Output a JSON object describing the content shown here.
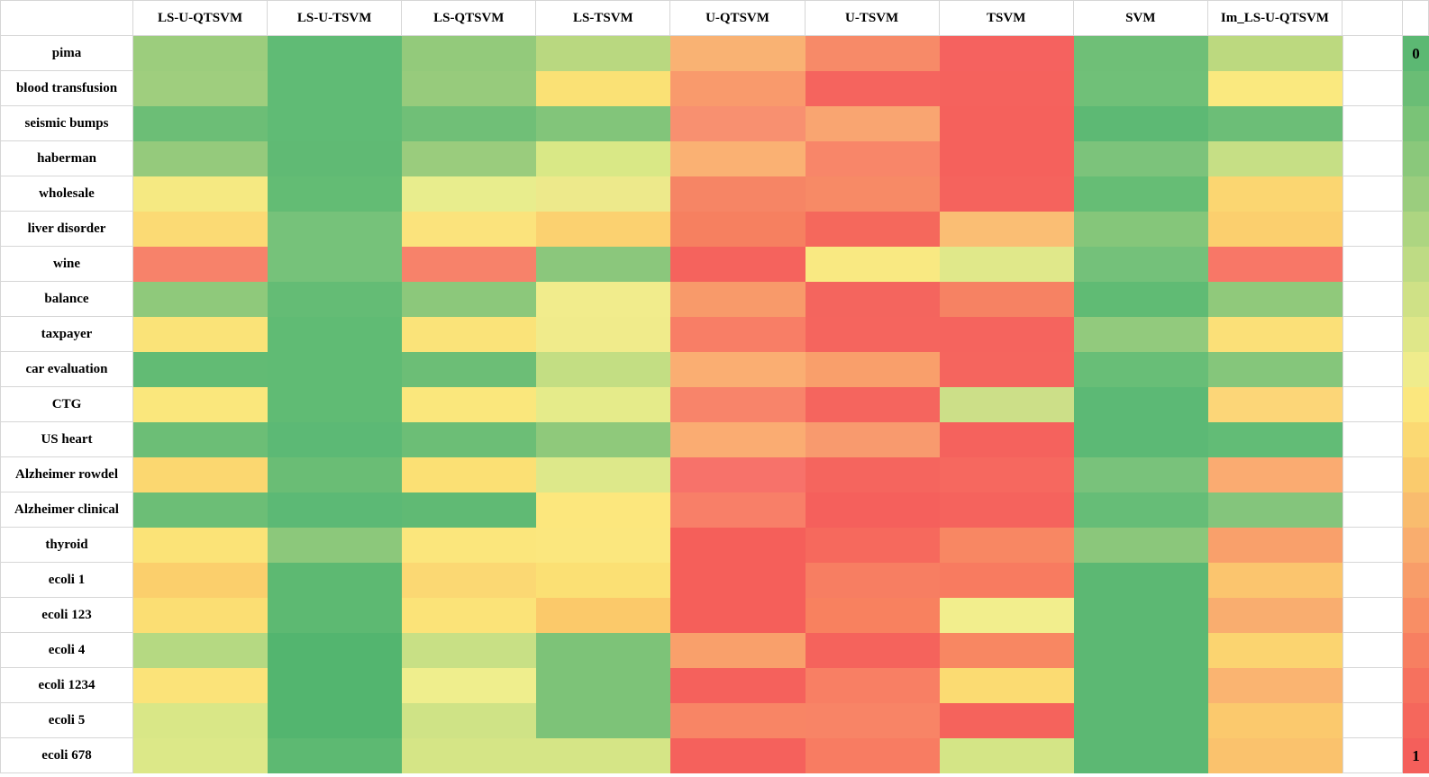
{
  "chart_data": {
    "type": "heatmap",
    "title": "",
    "columns": [
      "LS-U-QTSVM",
      "LS-U-TSVM",
      "LS-QTSVM",
      "LS-TSVM",
      "U-QTSVM",
      "U-TSVM",
      "TSVM",
      "SVM",
      "Im_LS-U-QTSVM"
    ],
    "rows": [
      "pima",
      "blood transfusion",
      "seismic bumps",
      "haberman",
      "wholesale",
      "liver disorder",
      "wine",
      "balance",
      "taxpayer",
      "car evaluation",
      "CTG",
      "US heart",
      "Alzheimer rowdel",
      "Alzheimer clinical",
      "thyroid",
      "ecoli 1",
      "ecoli 123",
      "ecoli 4",
      "ecoli 1234",
      "ecoli 5",
      "ecoli 678"
    ],
    "cell_colors": [
      [
        "#9ccd7d",
        "#60bb75",
        "#93ca7b",
        "#b9d880",
        "#f9b273",
        "#f78a68",
        "#f5625f",
        "#6fbf77",
        "#bcd97f"
      ],
      [
        "#9fce7e",
        "#60bb75",
        "#97cb7c",
        "#fae175",
        "#f99a6c",
        "#f5645e",
        "#f5625d",
        "#70c078",
        "#fae97f"
      ],
      [
        "#6cbe76",
        "#60bb75",
        "#70bf77",
        "#82c57a",
        "#f89070",
        "#f9a571",
        "#f5615c",
        "#5db974",
        "#6cbe77"
      ],
      [
        "#95ca7c",
        "#60ba74",
        "#9acc7d",
        "#d9e886",
        "#fab173",
        "#f88669",
        "#f5615c",
        "#7cc37b",
        "#c6df85"
      ],
      [
        "#f5e982",
        "#63bc74",
        "#e8ed8d",
        "#ede98b",
        "#f68565",
        "#f78a66",
        "#f5635d",
        "#66bd75",
        "#fbd671"
      ],
      [
        "#fbda74",
        "#76c27a",
        "#fbe37c",
        "#fbd170",
        "#f68060",
        "#f5685c",
        "#fabe74",
        "#85c67a",
        "#fbcf6e"
      ],
      [
        "#f7826a",
        "#76c27a",
        "#f7826a",
        "#8bc77c",
        "#f5635d",
        "#f9e982",
        "#e0e88a",
        "#74c17a",
        "#f87767"
      ],
      [
        "#8fc97b",
        "#64bc75",
        "#8cc87b",
        "#f1ec8c",
        "#f89a6a",
        "#f4655e",
        "#f68263",
        "#60bb74",
        "#90c97b"
      ],
      [
        "#fae378",
        "#60bb74",
        "#fae379",
        "#f0eb8b",
        "#f87e66",
        "#f5655e",
        "#f5645e",
        "#92ca7d",
        "#fbe078"
      ],
      [
        "#62bb74",
        "#60bb74",
        "#6cbe76",
        "#c3de83",
        "#faae72",
        "#f99f6b",
        "#f5655e",
        "#68be77",
        "#85c67b"
      ],
      [
        "#fae77c",
        "#60bb74",
        "#fae77c",
        "#e5eb8a",
        "#f8846a",
        "#f5655e",
        "#ccdf88",
        "#5cb975",
        "#fcd678"
      ],
      [
        "#6cbe76",
        "#5cb975",
        "#6cbe76",
        "#8fc97b",
        "#faac72",
        "#f89a6e",
        "#f5625d",
        "#5cb975",
        "#62bc76"
      ],
      [
        "#fbd770",
        "#6abd75",
        "#fbe074",
        "#dde88a",
        "#f7726a",
        "#f5655e",
        "#f6685f",
        "#79c27b",
        "#faab71"
      ],
      [
        "#6cbe76",
        "#5cb975",
        "#60ba74",
        "#fce77d",
        "#f87f68",
        "#f5605c",
        "#f5635d",
        "#66bd77",
        "#84c57c"
      ],
      [
        "#fbe377",
        "#8cc87b",
        "#fbe67c",
        "#fbe77e",
        "#f55f5a",
        "#f6695d",
        "#f88763",
        "#8bc77b",
        "#f9a06b"
      ],
      [
        "#fbcf6c",
        "#5db972",
        "#fbd873",
        "#fbe074",
        "#f55f5a",
        "#f77e62",
        "#f87b60",
        "#5cb873",
        "#fbc56e"
      ],
      [
        "#fbde73",
        "#5db972",
        "#fbe378",
        "#fbc96a",
        "#f55f5a",
        "#f8815f",
        "#f2ee8d",
        "#5cb873",
        "#f9ad6f"
      ],
      [
        "#b5d982",
        "#53b56f",
        "#c8e085",
        "#7dc378",
        "#f9a06b",
        "#f5635c",
        "#f88762",
        "#5cb873",
        "#fbd470"
      ],
      [
        "#fbe379",
        "#53b56f",
        "#efee8d",
        "#7dc378",
        "#f5615c",
        "#f87f64",
        "#fbdb72",
        "#5cb873",
        "#fab471"
      ],
      [
        "#d9e787",
        "#53b56f",
        "#cfe386",
        "#7dc378",
        "#f88565",
        "#f88466",
        "#f5635c",
        "#5cb873",
        "#fbc96d"
      ],
      [
        "#dce888",
        "#5db972",
        "#d5e586",
        "#d5e586",
        "#f5615c",
        "#f87c62",
        "#d4e586",
        "#5cb873",
        "#fac26d"
      ]
    ],
    "colorbar": {
      "orientation": "vertical",
      "top_label": "0",
      "bottom_label": "1",
      "segment_colors": [
        "#5cb873",
        "#6abd75",
        "#7ac377",
        "#8ac87b",
        "#9bcd7e",
        "#add581",
        "#bedb84",
        "#cfe186",
        "#dfe789",
        "#efec8c",
        "#fbe77e",
        "#fbd973",
        "#facb6d",
        "#f9bc6e",
        "#f9ad6e",
        "#f89d69",
        "#f88e65",
        "#f77f61",
        "#f6715e",
        "#f5675c",
        "#f45f5b"
      ]
    },
    "layout": {
      "legend_position": "right",
      "grid_lines": "only around white header, label and spacer cells",
      "value_range": [
        0,
        1
      ]
    }
  }
}
